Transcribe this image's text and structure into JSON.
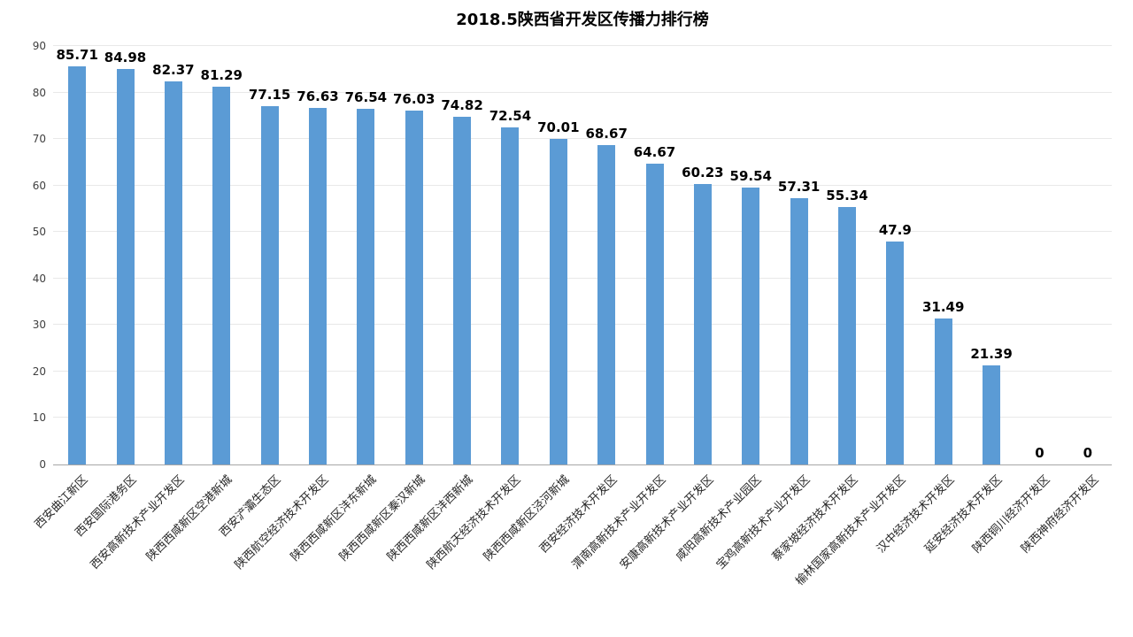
{
  "chart_data": {
    "type": "bar",
    "title": "2018.5陕西省开发区传播力排行榜",
    "categories": [
      "西安曲江新区",
      "西安国际港务区",
      "西安高新技术产业开发区",
      "陕西西咸新区空港新城",
      "西安浐灞生态区",
      "陕西航空经济技术开发区",
      "陕西西咸新区沣东新城",
      "陕西西咸新区秦汉新城",
      "陕西西咸新区沣西新城",
      "陕西航天经济技术开发区",
      "陕西西咸新区泾河新城",
      "西安经济技术开发区",
      "渭南高新技术产业开发区",
      "安康高新技术产业开发区",
      "咸阳高新技术产业园区",
      "宝鸡高新技术产业开发区",
      "蔡家坡经济技术开发区",
      "榆林国家高新技术产业开发区",
      "汉中经济技术开发区",
      "延安经济技术开发区",
      "陕西铜川经济开发区",
      "陕西神府经济开发区"
    ],
    "values": [
      85.71,
      84.98,
      82.37,
      81.29,
      77.15,
      76.63,
      76.54,
      76.03,
      74.82,
      72.54,
      70.01,
      68.67,
      64.67,
      60.23,
      59.54,
      57.31,
      55.34,
      47.9,
      31.49,
      21.39,
      0,
      0
    ],
    "xlabel": "",
    "ylabel": "",
    "ylim": [
      0,
      90
    ],
    "ytick_step": 10,
    "grid": "horizontal",
    "legend": "none",
    "bar_color": "#5b9bd5",
    "value_label_color": "#000000"
  }
}
